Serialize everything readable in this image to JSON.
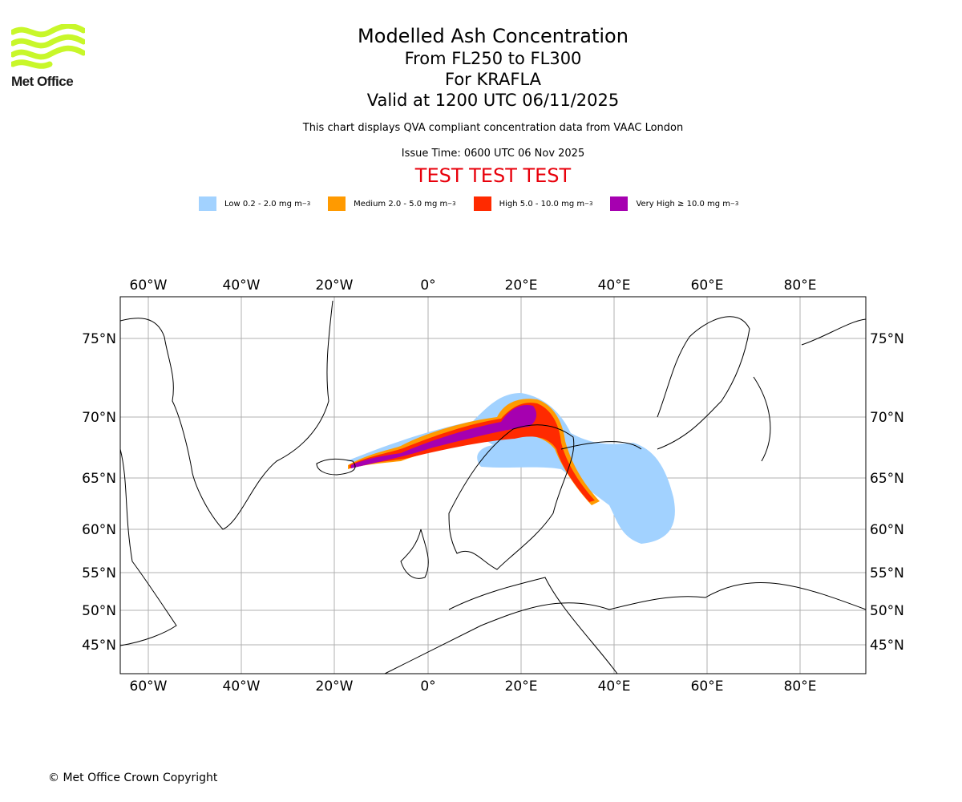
{
  "brand": {
    "logo_text": "Met Office"
  },
  "header": {
    "title": "Modelled Ash Concentration",
    "levels": "From FL250 to FL300",
    "volcano": "For KRAFLA",
    "valid": "Valid at 1200 UTC 06/11/2025",
    "note": "This chart displays QVA compliant concentration data from VAAC London",
    "issue": "Issue Time: 0600 UTC 06 Nov 2025",
    "test_banner": "TEST TEST TEST"
  },
  "legend": [
    {
      "label": "Low 0.2 - 2.0 mg m",
      "sup": "−3",
      "color": "#a2d2ff"
    },
    {
      "label": "Medium 2.0 - 5.0 mg m",
      "sup": "−3",
      "color": "#ff9a00"
    },
    {
      "label": "High 5.0 - 10.0 mg m",
      "sup": "−3",
      "color": "#ff2a00"
    },
    {
      "label": "Very High  ≥  10.0 mg m",
      "sup": "−3",
      "color": "#a600b0"
    }
  ],
  "axes": {
    "lon_labels": [
      "60°W",
      "40°W",
      "20°W",
      "0°",
      "20°E",
      "40°E",
      "60°E",
      "80°E"
    ],
    "lat_labels": [
      "75°N",
      "70°N",
      "65°N",
      "60°N",
      "55°N",
      "50°N",
      "45°N"
    ]
  },
  "footer": {
    "copyright": "© Met Office Crown Copyright"
  }
}
